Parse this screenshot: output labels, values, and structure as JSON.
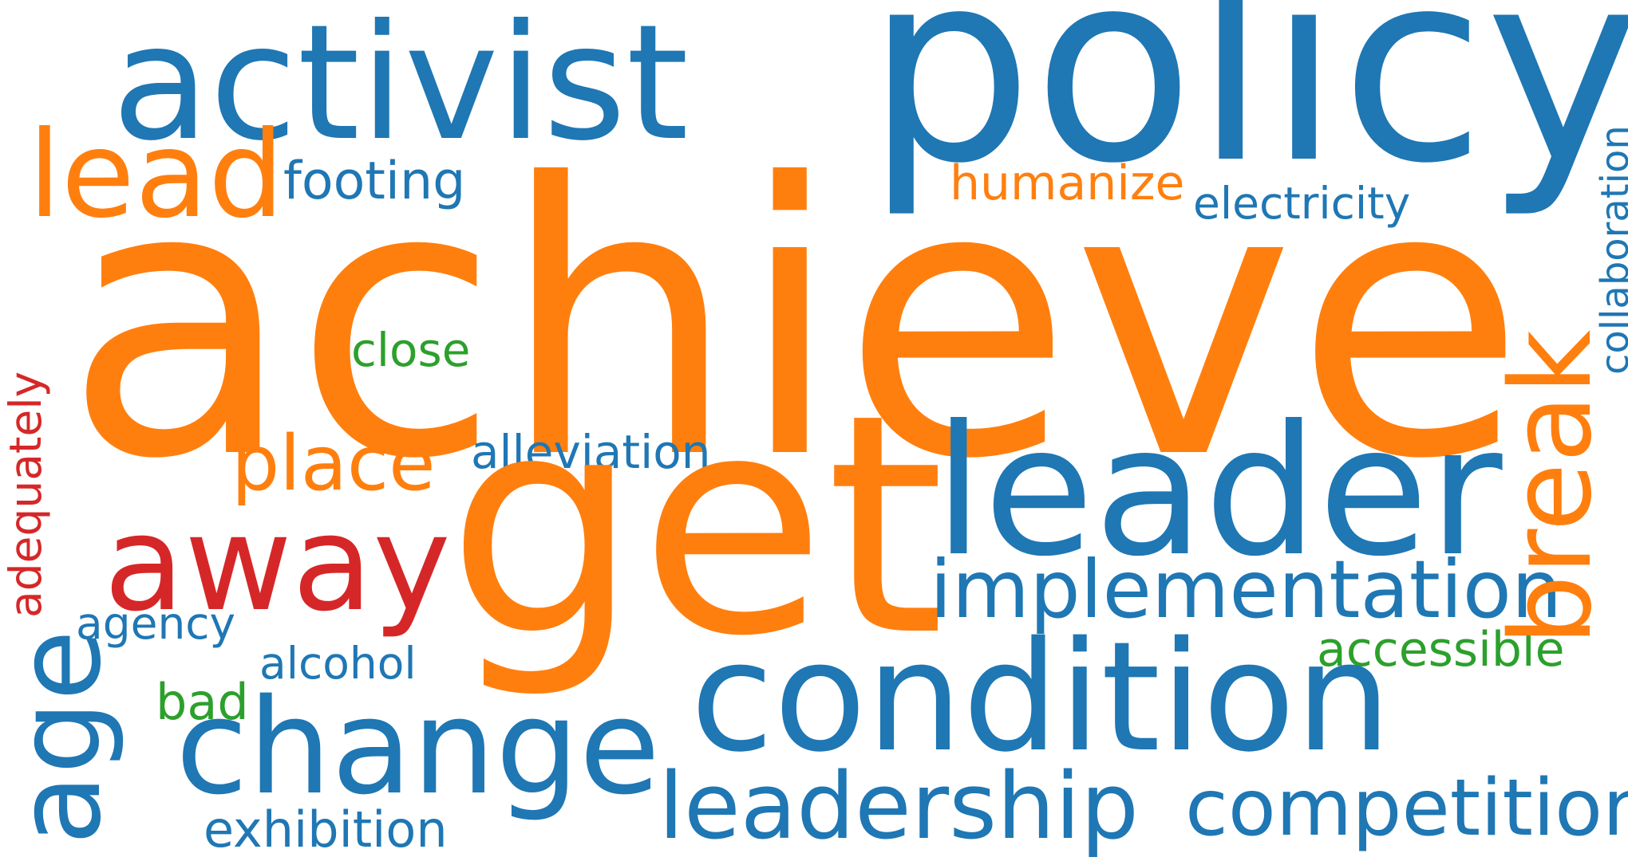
{
  "words": {
    "achieve": "achieve",
    "policy": "policy",
    "activist": "activist",
    "get": "get",
    "condition": "condition",
    "leader": "leader",
    "change": "change",
    "away": "away",
    "lead": "lead",
    "leadership": "leadership",
    "competition": "competition",
    "implementation": "implementation",
    "place": "place",
    "footing": "footing",
    "humanize": "humanize",
    "electricity": "electricity",
    "alleviation": "alleviation",
    "close": "close",
    "accessible": "accessible",
    "agency": "agency",
    "alcohol": "alcohol",
    "bad": "bad",
    "exhibition": "exhibition",
    "age": "age",
    "break": "break",
    "adequately": "adequately",
    "collaboration": "collaboration"
  },
  "colors": {
    "blue": "#1f77b4",
    "orange": "#ff7f0e",
    "green": "#2ca02c",
    "red": "#d62728",
    "background": "#ffffff"
  }
}
